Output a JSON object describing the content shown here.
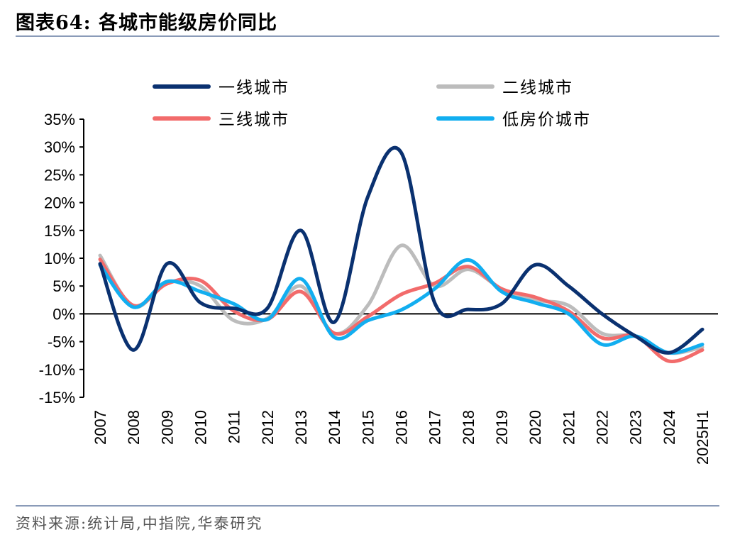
{
  "header": {
    "title": "图表64:  各城市能级房价同比"
  },
  "footer": {
    "source": "资料来源:统计局,中指院,华泰研究"
  },
  "chart_data": {
    "type": "line",
    "title": "",
    "xlabel": "",
    "ylabel": "",
    "categories": [
      "2007",
      "2008",
      "2009",
      "2010",
      "2011",
      "2012",
      "2013",
      "2014",
      "2015",
      "2016",
      "2017",
      "2018",
      "2019",
      "2020",
      "2021",
      "2022",
      "2023",
      "2024",
      "2025H1"
    ],
    "ylim": [
      -15,
      35
    ],
    "yticks": [
      35,
      30,
      25,
      20,
      15,
      10,
      5,
      0,
      -5,
      -10,
      -15
    ],
    "ytick_labels": [
      "35%",
      "30%",
      "25%",
      "20%",
      "15%",
      "10%",
      "5%",
      "0%",
      "-5%",
      "-10%",
      "-15%"
    ],
    "grid": false,
    "legend_position": "top",
    "series": [
      {
        "name": "一线城市",
        "color": "#0a3170",
        "values": [
          9.0,
          -6.5,
          9.0,
          2.0,
          1.0,
          1.0,
          15.0,
          -1.5,
          21.0,
          29.0,
          2.0,
          0.8,
          1.8,
          8.8,
          5.0,
          0.0,
          -4.0,
          -7.0,
          -2.8
        ]
      },
      {
        "name": "二线城市",
        "color": "#bcbcbc",
        "values": [
          10.5,
          1.3,
          5.6,
          5.0,
          -1.2,
          -0.8,
          5.0,
          -3.5,
          1.5,
          12.3,
          5.0,
          8.0,
          4.5,
          2.5,
          1.5,
          -3.5,
          -4.0,
          -7.0,
          -6.0
        ]
      },
      {
        "name": "三线城市",
        "color": "#f26b6b",
        "values": [
          9.8,
          1.5,
          5.4,
          6.0,
          0.5,
          -1.0,
          4.0,
          -3.5,
          -0.5,
          3.5,
          5.5,
          8.5,
          4.5,
          3.0,
          0.5,
          -4.3,
          -4.0,
          -8.5,
          -6.5
        ]
      },
      {
        "name": "低房价城市",
        "color": "#12aef0",
        "values": [
          8.8,
          1.2,
          5.8,
          4.0,
          1.8,
          -1.0,
          6.3,
          -4.2,
          -1.2,
          0.7,
          4.5,
          9.7,
          4.0,
          2.0,
          0.0,
          -5.5,
          -4.0,
          -7.0,
          -5.5
        ]
      }
    ]
  }
}
